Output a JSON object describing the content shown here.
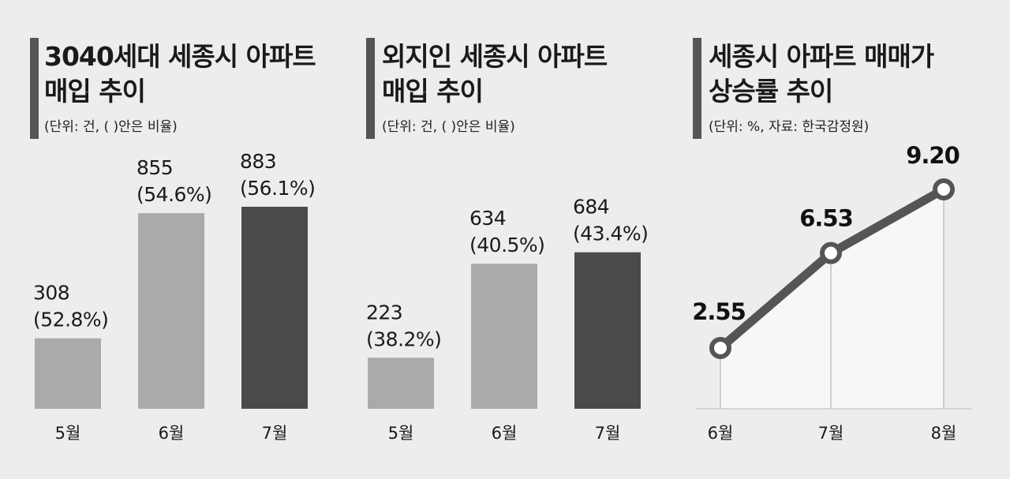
{
  "colors": {
    "background": "#ededed",
    "bar_light": "#aaaaaa",
    "bar_dark": "#4a4a4a",
    "title_accent": "#555555",
    "line": "#555555",
    "area_fill": "#f7f7f7"
  },
  "chart_data": [
    {
      "type": "bar",
      "title_line1": "3040세대 세종시 아파트",
      "title_line2": "매입 추이",
      "unit_note": "(단위: 건, ( )안은 비율)",
      "categories": [
        "5월",
        "6월",
        "7월"
      ],
      "values": [
        308,
        855,
        883
      ],
      "value_labels": [
        "308",
        "855",
        "883"
      ],
      "ratio_labels": [
        "(52.8%)",
        "(54.6%)",
        "(56.1%)"
      ],
      "highlight_index": 2
    },
    {
      "type": "bar",
      "title_line1": "외지인 세종시 아파트",
      "title_line2": "매입 추이",
      "unit_note": "(단위: 건, ( )안은 비율)",
      "categories": [
        "5월",
        "6월",
        "7월"
      ],
      "values": [
        223,
        634,
        684
      ],
      "value_labels": [
        "223",
        "634",
        "684"
      ],
      "ratio_labels": [
        "(38.2%)",
        "(40.5%)",
        "(43.4%)"
      ],
      "highlight_index": 2
    },
    {
      "type": "line",
      "title_line1": "세종시 아파트 매매가",
      "title_line2": "상승률 추이",
      "unit_note": "(단위: %, 자료: 한국감정원)",
      "categories": [
        "6월",
        "7월",
        "8월"
      ],
      "values": [
        2.55,
        6.53,
        9.2
      ],
      "value_labels": [
        "2.55",
        "6.53",
        "9.20"
      ]
    }
  ]
}
